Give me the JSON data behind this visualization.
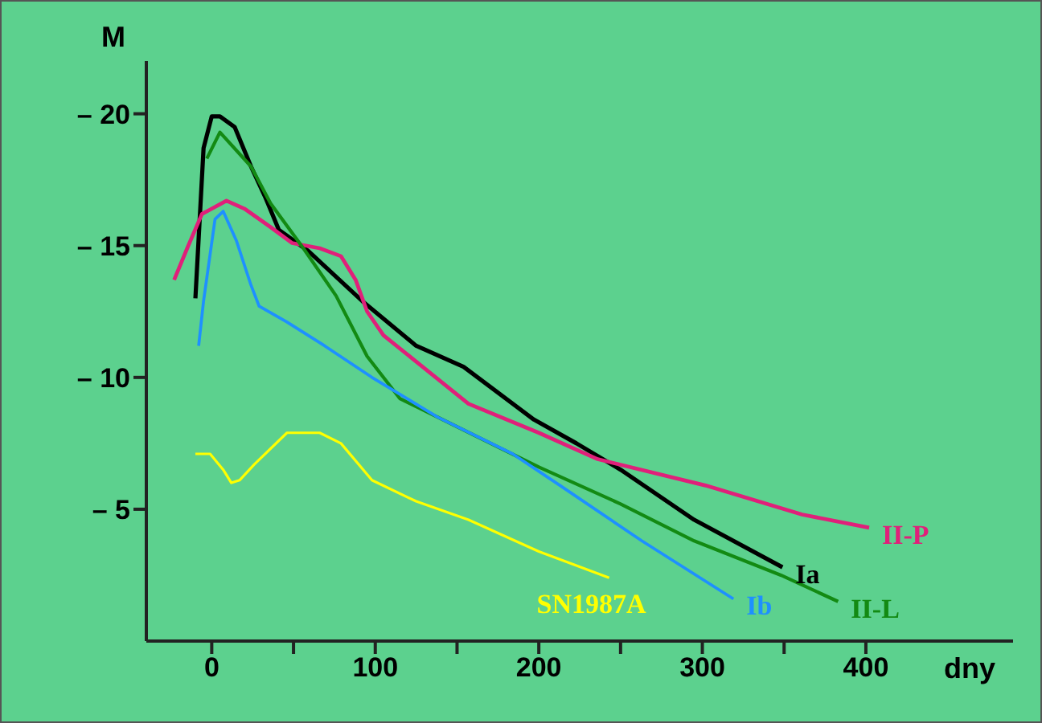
{
  "chart_data": {
    "type": "line",
    "xlabel": "dny",
    "ylabel": "M",
    "xlim": [
      -40,
      490
    ],
    "ylim": [
      0,
      -22
    ],
    "xticks": [
      0,
      {
        "value": 50,
        "label": null
      },
      100,
      {
        "value": 150,
        "label": null
      },
      200,
      {
        "value": 250,
        "label": null
      },
      300,
      {
        "value": 350,
        "label": null
      },
      400
    ],
    "yticks": [
      {
        "value": -20,
        "label": "– 20"
      },
      {
        "value": -15,
        "label": "– 15"
      },
      {
        "value": -10,
        "label": "– 10"
      },
      {
        "value": -5,
        "label": "– 5"
      }
    ],
    "grid": false,
    "legend": false,
    "marker": "none",
    "line_style": "solid",
    "series": [
      {
        "name": "Ia",
        "color": "#000000",
        "x": [
          -10,
          -5,
          0,
          5,
          14,
          24,
          33,
          41,
          59,
          92,
          125,
          154,
          197,
          223,
          250,
          295,
          349
        ],
        "values": [
          -13,
          -18.7,
          -19.9,
          -19.9,
          -19.5,
          -18,
          -16.8,
          -15.6,
          -14.8,
          -12.9,
          -11.2,
          -10.4,
          -8.4,
          -7.5,
          -6.5,
          -4.6,
          -2.8
        ]
      },
      {
        "name": "II-P",
        "color": "#e0207a",
        "x": [
          -23,
          -15,
          -6,
          9,
          20,
          36,
          49,
          66,
          79,
          88,
          95,
          105,
          125,
          157,
          200,
          236,
          302,
          361,
          402
        ],
        "values": [
          -13.7,
          -14.9,
          -16.2,
          -16.7,
          -16.4,
          -15.7,
          -15.1,
          -14.9,
          -14.6,
          -13.7,
          -12.5,
          -11.6,
          -10.6,
          -9,
          -7.9,
          -6.9,
          -5.9,
          -4.8,
          -4.3
        ]
      },
      {
        "name": "II-L",
        "color": "#138a13",
        "x": [
          -3,
          5,
          24,
          36,
          56,
          76,
          95,
          115,
          138,
          177,
          200,
          250,
          295,
          348,
          383
        ],
        "values": [
          -18.3,
          -19.3,
          -18,
          -16.6,
          -14.9,
          -13.1,
          -10.8,
          -9.2,
          -8.5,
          -7.3,
          -6.6,
          -5.2,
          -3.8,
          -2.5,
          -1.5
        ]
      },
      {
        "name": "Ib",
        "color": "#1e90ff",
        "x": [
          -8,
          -5,
          2,
          7,
          15,
          24,
          29,
          46,
          69,
          98,
          138,
          184,
          213,
          263,
          319
        ],
        "values": [
          -11.2,
          -12.9,
          -16,
          -16.3,
          -15.2,
          -13.5,
          -12.7,
          -12.1,
          -11.2,
          -10,
          -8.5,
          -7.1,
          -5.9,
          -3.8,
          -1.6
        ]
      },
      {
        "name": "SN1987A",
        "color": "#ffff00",
        "x": [
          -10,
          -1,
          7,
          12,
          17,
          26,
          46,
          66,
          79,
          98,
          125,
          157,
          200,
          243
        ],
        "values": [
          -7.1,
          -7.1,
          -6.5,
          -6,
          -6.1,
          -6.7,
          -7.9,
          -7.9,
          -7.5,
          -6.1,
          -5.3,
          -4.6,
          -3.4,
          -2.4
        ]
      }
    ]
  }
}
